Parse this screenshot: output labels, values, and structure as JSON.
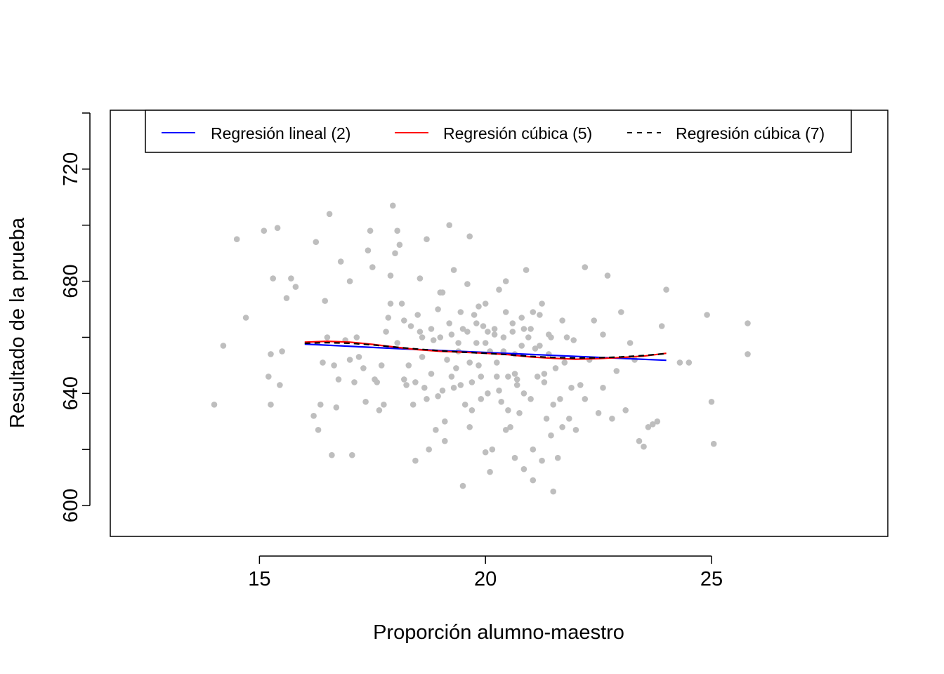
{
  "chart_data": {
    "type": "scatter",
    "title": "",
    "xlabel": "Proporción alumno-maestro",
    "ylabel": "Resultado de la prueba",
    "xlim": [
      11.7,
      28.9
    ],
    "ylim": [
      589,
      741
    ],
    "xticks": [
      15,
      20,
      25
    ],
    "yticks": [
      600,
      640,
      680,
      720
    ],
    "grid": false,
    "legend_position": "top",
    "points_color": "#bebebe",
    "points": [
      [
        14.0,
        636
      ],
      [
        14.2,
        657
      ],
      [
        14.5,
        695
      ],
      [
        14.7,
        667
      ],
      [
        15.1,
        698
      ],
      [
        15.2,
        646
      ],
      [
        15.25,
        654
      ],
      [
        15.3,
        681
      ],
      [
        15.4,
        699
      ],
      [
        15.45,
        643
      ],
      [
        15.5,
        655
      ],
      [
        15.6,
        674
      ],
      [
        15.7,
        681
      ],
      [
        15.8,
        678
      ],
      [
        15.25,
        636
      ],
      [
        16.2,
        632
      ],
      [
        16.25,
        694
      ],
      [
        16.3,
        627
      ],
      [
        16.35,
        636
      ],
      [
        16.4,
        651
      ],
      [
        16.45,
        673
      ],
      [
        16.5,
        660
      ],
      [
        16.55,
        704
      ],
      [
        16.6,
        618
      ],
      [
        16.65,
        650
      ],
      [
        16.7,
        635
      ],
      [
        16.75,
        645
      ],
      [
        16.8,
        687
      ],
      [
        16.9,
        659
      ],
      [
        17.0,
        680
      ],
      [
        17.05,
        618
      ],
      [
        17.1,
        644
      ],
      [
        17.15,
        660
      ],
      [
        17.2,
        653
      ],
      [
        17.3,
        649
      ],
      [
        17.35,
        637
      ],
      [
        17.4,
        691
      ],
      [
        17.45,
        698
      ],
      [
        17.5,
        685
      ],
      [
        17.55,
        645
      ],
      [
        17.6,
        644
      ],
      [
        17.7,
        650
      ],
      [
        17.75,
        636
      ],
      [
        17.8,
        662
      ],
      [
        17.85,
        667
      ],
      [
        17.9,
        682
      ],
      [
        17.95,
        707
      ],
      [
        18.0,
        690
      ],
      [
        18.05,
        698
      ],
      [
        18.1,
        693
      ],
      [
        18.15,
        672
      ],
      [
        18.2,
        666
      ],
      [
        18.25,
        643
      ],
      [
        18.3,
        650
      ],
      [
        18.35,
        664
      ],
      [
        18.4,
        636
      ],
      [
        18.45,
        616
      ],
      [
        18.5,
        668
      ],
      [
        18.55,
        681
      ],
      [
        18.6,
        653
      ],
      [
        18.65,
        642
      ],
      [
        18.7,
        695
      ],
      [
        18.75,
        620
      ],
      [
        18.8,
        647
      ],
      [
        18.85,
        659
      ],
      [
        18.9,
        627
      ],
      [
        18.95,
        670
      ],
      [
        19.0,
        676
      ],
      [
        19.05,
        641
      ],
      [
        19.1,
        623
      ],
      [
        19.15,
        652
      ],
      [
        19.2,
        700
      ],
      [
        19.25,
        661
      ],
      [
        19.3,
        684
      ],
      [
        19.35,
        649
      ],
      [
        19.4,
        655
      ],
      [
        19.45,
        643
      ],
      [
        19.5,
        663
      ],
      [
        19.55,
        636
      ],
      [
        19.6,
        679
      ],
      [
        19.65,
        696
      ],
      [
        19.7,
        634
      ],
      [
        19.75,
        668
      ],
      [
        19.8,
        658
      ],
      [
        19.85,
        650
      ],
      [
        19.9,
        646
      ],
      [
        19.95,
        664
      ],
      [
        20.0,
        672
      ],
      [
        20.05,
        640
      ],
      [
        20.1,
        655
      ],
      [
        20.15,
        620
      ],
      [
        20.2,
        663
      ],
      [
        20.25,
        646
      ],
      [
        20.3,
        677
      ],
      [
        20.35,
        637
      ],
      [
        20.4,
        660
      ],
      [
        20.45,
        680
      ],
      [
        20.5,
        646
      ],
      [
        20.55,
        628
      ],
      [
        20.6,
        665
      ],
      [
        20.65,
        654
      ],
      [
        20.7,
        643
      ],
      [
        20.75,
        633
      ],
      [
        20.8,
        667
      ],
      [
        20.85,
        640
      ],
      [
        20.9,
        684
      ],
      [
        20.95,
        660
      ],
      [
        21.0,
        638
      ],
      [
        21.05,
        620
      ],
      [
        21.1,
        656
      ],
      [
        21.15,
        646
      ],
      [
        21.2,
        668
      ],
      [
        21.25,
        672
      ],
      [
        21.3,
        644
      ],
      [
        21.35,
        631
      ],
      [
        21.4,
        654
      ],
      [
        21.45,
        660
      ],
      [
        21.5,
        605
      ],
      [
        21.55,
        649
      ],
      [
        21.6,
        617
      ],
      [
        21.65,
        638
      ],
      [
        21.7,
        666
      ],
      [
        21.75,
        651
      ],
      [
        21.8,
        660
      ],
      [
        21.85,
        631
      ],
      [
        21.9,
        642
      ],
      [
        21.95,
        659
      ],
      [
        22.0,
        627
      ],
      [
        22.1,
        643
      ],
      [
        22.2,
        685
      ],
      [
        22.3,
        652
      ],
      [
        22.4,
        666
      ],
      [
        22.5,
        633
      ],
      [
        22.6,
        661
      ],
      [
        22.7,
        682
      ],
      [
        22.8,
        631
      ],
      [
        22.9,
        648
      ],
      [
        23.0,
        669
      ],
      [
        23.1,
        634
      ],
      [
        23.2,
        658
      ],
      [
        23.3,
        652
      ],
      [
        23.4,
        623
      ],
      [
        23.5,
        621
      ],
      [
        23.6,
        628
      ],
      [
        23.7,
        629
      ],
      [
        23.8,
        630
      ],
      [
        23.9,
        664
      ],
      [
        24.0,
        677
      ],
      [
        24.3,
        651
      ],
      [
        24.5,
        651
      ],
      [
        24.9,
        668
      ],
      [
        25.0,
        637
      ],
      [
        25.05,
        622
      ],
      [
        25.8,
        665
      ],
      [
        25.8,
        654
      ],
      [
        17.9,
        672
      ],
      [
        18.05,
        658
      ],
      [
        18.45,
        644
      ],
      [
        18.55,
        662
      ],
      [
        18.95,
        639
      ],
      [
        19.05,
        676
      ],
      [
        19.25,
        646
      ],
      [
        19.45,
        669
      ],
      [
        19.65,
        651
      ],
      [
        19.85,
        671
      ],
      [
        20.05,
        662
      ],
      [
        20.25,
        651
      ],
      [
        20.45,
        669
      ],
      [
        20.65,
        647
      ],
      [
        20.85,
        663
      ],
      [
        21.05,
        669
      ],
      [
        18.6,
        660
      ],
      [
        18.8,
        663
      ],
      [
        19.0,
        660
      ],
      [
        19.2,
        665
      ],
      [
        19.4,
        658
      ],
      [
        19.6,
        662
      ],
      [
        19.8,
        665
      ],
      [
        20.0,
        658
      ],
      [
        20.2,
        661
      ],
      [
        20.4,
        655
      ],
      [
        20.6,
        662
      ],
      [
        20.8,
        657
      ],
      [
        21.0,
        663
      ],
      [
        21.2,
        657
      ],
      [
        21.4,
        661
      ],
      [
        19.5,
        607
      ],
      [
        20.1,
        612
      ],
      [
        20.85,
        613
      ],
      [
        21.05,
        609
      ],
      [
        20.65,
        617
      ],
      [
        21.25,
        616
      ],
      [
        20.0,
        619
      ],
      [
        19.65,
        628
      ],
      [
        20.45,
        627
      ],
      [
        21.45,
        625
      ],
      [
        19.1,
        630
      ],
      [
        21.7,
        628
      ],
      [
        19.3,
        642
      ],
      [
        19.7,
        644
      ],
      [
        20.3,
        641
      ],
      [
        20.7,
        645
      ],
      [
        21.3,
        647
      ],
      [
        18.7,
        638
      ],
      [
        19.9,
        638
      ],
      [
        20.5,
        634
      ],
      [
        21.5,
        636
      ],
      [
        22.2,
        638
      ],
      [
        22.6,
        642
      ],
      [
        18.2,
        645
      ],
      [
        17.65,
        634
      ],
      [
        17.0,
        652
      ]
    ],
    "series": [
      {
        "name": "Regresión lineal (2)",
        "color": "#0000ff",
        "dash": "solid",
        "x": [
          16,
          18,
          20,
          22,
          24
        ],
        "y": [
          657.6,
          656.0,
          654.6,
          653.2,
          651.8
        ]
      },
      {
        "name": "Regresión cúbica (5)",
        "color": "#ff0000",
        "dash": "solid",
        "x": [
          16,
          16.5,
          17,
          17.5,
          18,
          18.5,
          19,
          19.5,
          20,
          20.5,
          21,
          21.5,
          22,
          22.5,
          23,
          23.5,
          24
        ],
        "y": [
          658.3,
          658.6,
          658.3,
          657.5,
          656.5,
          655.6,
          655.0,
          654.7,
          654.3,
          653.8,
          653.0,
          652.5,
          652.2,
          652.4,
          652.8,
          653.3,
          654.3
        ]
      },
      {
        "name": "Regresión cúbica (7)",
        "color": "#000000",
        "dash": "dashed",
        "x": [
          16,
          16.5,
          17,
          17.5,
          18,
          18.5,
          19,
          19.5,
          20,
          20.5,
          21,
          21.5,
          22,
          22.5,
          23,
          23.5,
          24
        ],
        "y": [
          657.9,
          658.1,
          657.9,
          657.3,
          656.5,
          655.8,
          655.2,
          654.7,
          654.3,
          653.8,
          653.2,
          652.8,
          652.6,
          652.7,
          653.0,
          653.5,
          654.2
        ]
      }
    ]
  }
}
